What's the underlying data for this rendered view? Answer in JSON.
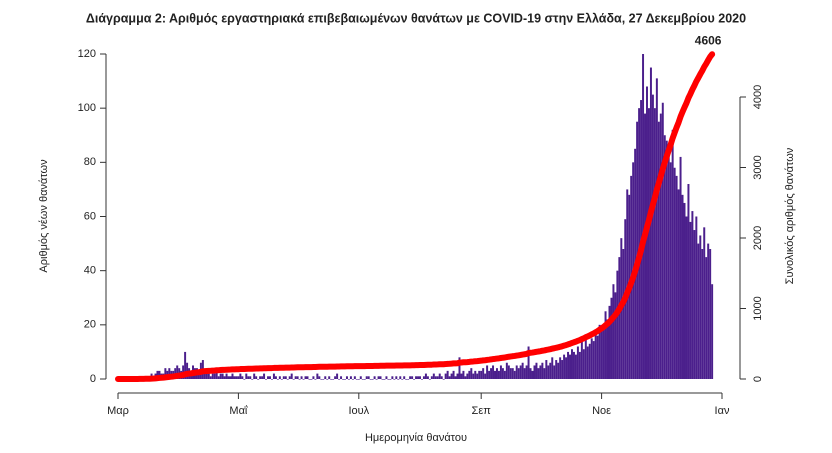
{
  "chart_data": {
    "type": "bar",
    "title": "Διάγραμμα 2: Αριθμός εργαστηριακά επιβεβαιωμένων θανάτων με COVID-19 στην Ελλάδα, 27 Δεκεμβρίου 2020",
    "xlabel": "Ημερομηνία θανάτου",
    "ylabel": "Αριθμός νέων θανάτων",
    "y2label": "Συνολικός αριθμός θανάτων",
    "xlim": [
      0,
      306
    ],
    "xticks": [
      {
        "value": 0,
        "label": "Μαρ"
      },
      {
        "value": 61,
        "label": "Μαΐ"
      },
      {
        "value": 122,
        "label": "Ιουλ"
      },
      {
        "value": 184,
        "label": "Σεπ"
      },
      {
        "value": 245,
        "label": "Νοε"
      },
      {
        "value": 306,
        "label": "Ιαν"
      }
    ],
    "ylim": [
      0,
      120
    ],
    "yticks": [
      0,
      20,
      40,
      60,
      80,
      100,
      120
    ],
    "y2lim": [
      0,
      4610
    ],
    "y2ticks": [
      0,
      1000,
      2000,
      3000,
      4000
    ],
    "x": [
      0,
      1,
      2,
      3,
      4,
      5,
      6,
      7,
      8,
      9,
      10,
      11,
      12,
      13,
      14,
      15,
      16,
      17,
      18,
      19,
      20,
      21,
      22,
      23,
      24,
      25,
      26,
      27,
      28,
      29,
      30,
      31,
      32,
      33,
      34,
      35,
      36,
      37,
      38,
      39,
      40,
      41,
      42,
      43,
      44,
      45,
      46,
      47,
      48,
      49,
      50,
      51,
      52,
      53,
      54,
      55,
      56,
      57,
      58,
      59,
      60,
      61,
      62,
      63,
      64,
      65,
      66,
      67,
      68,
      69,
      70,
      71,
      72,
      73,
      74,
      75,
      76,
      77,
      78,
      79,
      80,
      81,
      82,
      83,
      84,
      85,
      86,
      87,
      88,
      89,
      90,
      91,
      92,
      93,
      94,
      95,
      96,
      97,
      98,
      99,
      100,
      101,
      102,
      103,
      104,
      105,
      106,
      107,
      108,
      109,
      110,
      111,
      112,
      113,
      114,
      115,
      116,
      117,
      118,
      119,
      120,
      121,
      122,
      123,
      124,
      125,
      126,
      127,
      128,
      129,
      130,
      131,
      132,
      133,
      134,
      135,
      136,
      137,
      138,
      139,
      140,
      141,
      142,
      143,
      144,
      145,
      146,
      147,
      148,
      149,
      150,
      151,
      152,
      153,
      154,
      155,
      156,
      157,
      158,
      159,
      160,
      161,
      162,
      163,
      164,
      165,
      166,
      167,
      168,
      169,
      170,
      171,
      172,
      173,
      174,
      175,
      176,
      177,
      178,
      179,
      180,
      181,
      182,
      183,
      184,
      185,
      186,
      187,
      188,
      189,
      190,
      191,
      192,
      193,
      194,
      195,
      196,
      197,
      198,
      199,
      200,
      201,
      202,
      203,
      204,
      205,
      206,
      207,
      208,
      209,
      210,
      211,
      212,
      213,
      214,
      215,
      216,
      217,
      218,
      219,
      220,
      221,
      222,
      223,
      224,
      225,
      226,
      227,
      228,
      229,
      230,
      231,
      232,
      233,
      234,
      235,
      236,
      237,
      238,
      239,
      240,
      241,
      242,
      243,
      244,
      245,
      246,
      247,
      248,
      249,
      250,
      251,
      252,
      253,
      254,
      255,
      256,
      257,
      258,
      259,
      260,
      261,
      262,
      263,
      264,
      265,
      266,
      267,
      268,
      269,
      270,
      271,
      272,
      273,
      274,
      275,
      276,
      277,
      278,
      279,
      280,
      281,
      282,
      283,
      284,
      285,
      286,
      287,
      288,
      289,
      290,
      291,
      292,
      293,
      294,
      295,
      296,
      297,
      298,
      299,
      300,
      301
    ],
    "series": [
      {
        "color": "#4b1f8c",
        "values": [
          0,
          0,
          0,
          0,
          0,
          0,
          0,
          0,
          0,
          0,
          0,
          1,
          0,
          1,
          1,
          0,
          1,
          2,
          1,
          2,
          3,
          3,
          2,
          2,
          4,
          3,
          4,
          3,
          3,
          4,
          5,
          4,
          3,
          5,
          10,
          6,
          4,
          3,
          5,
          4,
          4,
          3,
          6,
          7,
          3,
          2,
          2,
          1,
          2,
          2,
          3,
          1,
          2,
          2,
          1,
          2,
          1,
          1,
          2,
          1,
          1,
          1,
          2,
          1,
          0,
          2,
          1,
          1,
          0,
          2,
          1,
          0,
          1,
          1,
          2,
          0,
          1,
          1,
          0,
          2,
          1,
          0,
          1,
          0,
          1,
          1,
          0,
          1,
          2,
          0,
          1,
          1,
          0,
          1,
          0,
          1,
          1,
          0,
          0,
          1,
          0,
          2,
          1,
          0,
          0,
          1,
          0,
          1,
          0,
          0,
          1,
          2,
          0,
          1,
          0,
          0,
          1,
          0,
          1,
          0,
          1,
          0,
          0,
          1,
          0,
          0,
          1,
          1,
          0,
          0,
          1,
          0,
          1,
          1,
          0,
          0,
          1,
          0,
          0,
          1,
          0,
          1,
          0,
          1,
          0,
          1,
          0,
          0,
          1,
          1,
          0,
          1,
          1,
          1,
          0,
          1,
          2,
          1,
          0,
          1,
          2,
          1,
          1,
          2,
          1,
          0,
          2,
          3,
          1,
          2,
          3,
          1,
          2,
          8,
          2,
          3,
          1,
          2,
          3,
          4,
          2,
          3,
          2,
          3,
          3,
          4,
          2,
          5,
          3,
          4,
          5,
          3,
          4,
          3,
          5,
          4,
          3,
          6,
          5,
          4,
          4,
          3,
          5,
          4,
          5,
          6,
          4,
          5,
          12,
          4,
          3,
          5,
          6,
          4,
          5,
          6,
          4,
          7,
          5,
          6,
          8,
          5,
          7,
          6,
          8,
          7,
          9,
          8,
          10,
          9,
          11,
          10,
          9,
          12,
          10,
          14,
          11,
          16,
          12,
          13,
          15,
          14,
          17,
          16,
          20,
          18,
          20,
          25,
          22,
          27,
          30,
          35,
          32,
          40,
          45,
          52,
          48,
          59,
          70,
          68,
          75,
          80,
          85,
          95,
          100,
          103,
          120,
          98,
          108,
          100,
          115,
          105,
          100,
          111,
          95,
          98,
          102,
          90,
          88,
          85,
          80,
          92,
          78,
          75,
          70,
          82,
          68,
          65,
          60,
          72,
          58,
          62,
          55,
          60,
          50,
          53,
          48,
          56,
          45,
          50,
          48,
          35
        ]
      },
      {
        "type": "line",
        "axis": "y2",
        "color": "#ff0000",
        "values": [
          0,
          0,
          0,
          0,
          0,
          0,
          0,
          0,
          0,
          0,
          0,
          1,
          1,
          2,
          3,
          3,
          4,
          6,
          7,
          9,
          12,
          15,
          17,
          19,
          23,
          26,
          30,
          33,
          36,
          40,
          45,
          49,
          52,
          57,
          67,
          73,
          77,
          80,
          85,
          89,
          93,
          96,
          102,
          109,
          112,
          114,
          116,
          117,
          119,
          121,
          124,
          125,
          127,
          129,
          130,
          132,
          133,
          134,
          136,
          137,
          138,
          139,
          141,
          142,
          142,
          144,
          145,
          146,
          146,
          148,
          149,
          149,
          150,
          151,
          153,
          153,
          154,
          155,
          155,
          157,
          158,
          158,
          159,
          159,
          160,
          161,
          161,
          162,
          164,
          164,
          165,
          166,
          166,
          167,
          167,
          168,
          169,
          169,
          169,
          170,
          170,
          172,
          173,
          173,
          173,
          174,
          174,
          175,
          175,
          175,
          176,
          178,
          178,
          179,
          179,
          179,
          180,
          180,
          181,
          181,
          182,
          182,
          182,
          183,
          183,
          183,
          184,
          185,
          185,
          185,
          186,
          186,
          187,
          188,
          188,
          188,
          189,
          189,
          189,
          190,
          190,
          191,
          191,
          192,
          192,
          193,
          193,
          193,
          194,
          195,
          195,
          196,
          197,
          198,
          198,
          199,
          201,
          202,
          202,
          203,
          205,
          206,
          207,
          209,
          210,
          210,
          212,
          215,
          216,
          218,
          221,
          222,
          224,
          232,
          234,
          237,
          238,
          240,
          243,
          247,
          249,
          252,
          254,
          257,
          260,
          264,
          266,
          271,
          274,
          278,
          283,
          286,
          290,
          293,
          298,
          302,
          305,
          311,
          316,
          320,
          324,
          327,
          332,
          336,
          341,
          347,
          351,
          356,
          368,
          372,
          375,
          380,
          386,
          390,
          395,
          401,
          405,
          412,
          417,
          423,
          431,
          436,
          443,
          449,
          457,
          464,
          473,
          481,
          491,
          500,
          511,
          521,
          530,
          542,
          552,
          566,
          577,
          593,
          605,
          618,
          633,
          647,
          664,
          680,
          700,
          718,
          738,
          763,
          785,
          812,
          842,
          877,
          909,
          949,
          994,
          1046,
          1094,
          1153,
          1223,
          1291,
          1366,
          1446,
          1531,
          1626,
          1726,
          1829,
          1949,
          2047,
          2155,
          2255,
          2370,
          2475,
          2575,
          2686,
          2781,
          2879,
          2981,
          3071,
          3159,
          3244,
          3324,
          3416,
          3494,
          3569,
          3639,
          3721,
          3789,
          3854,
          3914,
          3986,
          4044,
          4106,
          4161,
          4221,
          4271,
          4324,
          4372,
          4428,
          4473,
          4523,
          4571,
          4606
        ]
      }
    ]
  }
}
